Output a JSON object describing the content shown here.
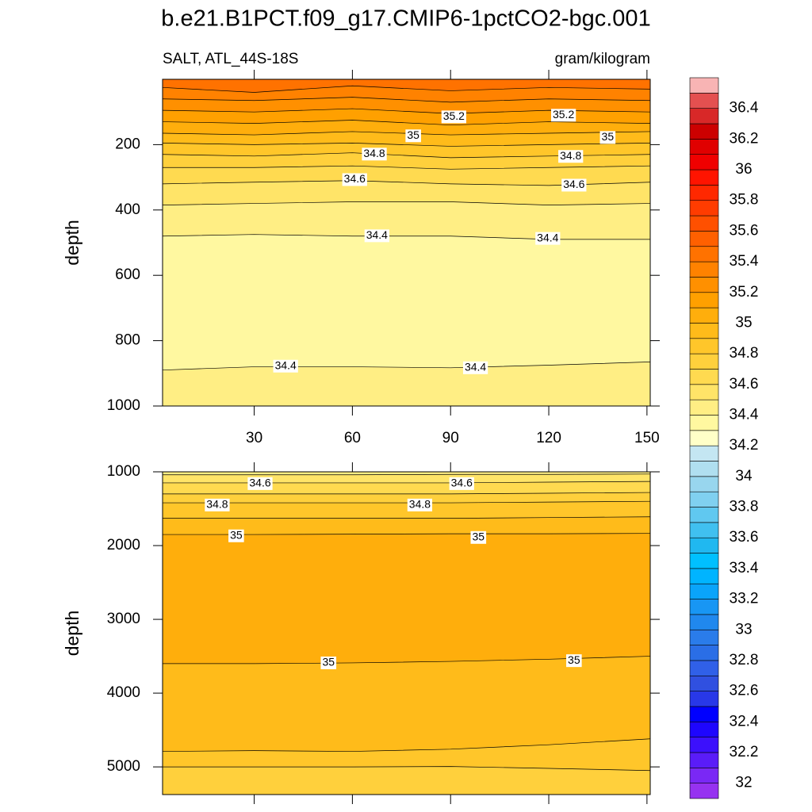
{
  "chart_data": {
    "type": "contour",
    "title": "b.e21.B1PCT.f09_g17.CMIP6-1pctCO2-bgc.001",
    "left_label": "SALT, ATL_44S-18S",
    "right_label": "gram/kilogram",
    "panels": [
      {
        "ylabel": "depth",
        "xlim": [
          2,
          151
        ],
        "xticks": [
          30,
          60,
          90,
          120,
          150
        ],
        "xtick_labels": true,
        "ylim": [
          0,
          1000
        ],
        "yticks": [
          200,
          400,
          600,
          800,
          1000
        ],
        "x": [
          2,
          30,
          60,
          90,
          120,
          151
        ],
        "contours": [
          {
            "depth": [
              25,
              40,
              20,
              35,
              25,
              30
            ]
          },
          {
            "depth": [
              60,
              65,
              55,
              70,
              60,
              65
            ]
          },
          {
            "depth": [
              95,
              100,
              90,
              105,
              95,
              100
            ]
          },
          {
            "depth": [
              130,
              135,
              125,
              140,
              130,
              135
            ]
          },
          {
            "depth": [
              165,
              170,
              160,
              170,
              165,
              160
            ]
          },
          {
            "depth": [
              195,
              200,
              195,
              205,
              200,
              195
            ]
          },
          {
            "depth": [
              230,
              235,
              225,
              240,
              235,
              230
            ]
          },
          {
            "depth": [
              270,
              270,
              265,
              275,
              270,
              265
            ]
          },
          {
            "depth": [
              320,
              315,
              310,
              320,
              325,
              315
            ]
          },
          {
            "depth": [
              385,
              380,
              375,
              375,
              385,
              380
            ]
          },
          {
            "depth": [
              480,
              475,
              480,
              480,
              490,
              490
            ]
          },
          {
            "depth": [
              890,
              880,
              880,
              883,
              875,
              865
            ]
          }
        ],
        "fill_levels": [
          35.4,
          35.3,
          35.2,
          35.1,
          35.0,
          34.9,
          34.8,
          34.7,
          34.6,
          34.5,
          34.4,
          34.3,
          34.4
        ],
        "contour_labels": [
          {
            "value": 35.2,
            "x": 91,
            "depth": 115
          },
          {
            "value": 35.2,
            "x": 124.5,
            "depth": 110
          },
          {
            "value": 35,
            "x": 78.6,
            "depth": 173
          },
          {
            "value": 35,
            "x": 138,
            "depth": 178
          },
          {
            "value": 34.8,
            "x": 66.7,
            "depth": 229
          },
          {
            "value": 34.8,
            "x": 126.7,
            "depth": 236
          },
          {
            "value": 34.6,
            "x": 60.7,
            "depth": 307
          },
          {
            "value": 34.6,
            "x": 127.7,
            "depth": 324
          },
          {
            "value": 34.4,
            "x": 67.5,
            "depth": 479
          },
          {
            "value": 34.4,
            "x": 119.7,
            "depth": 487
          },
          {
            "value": 34.4,
            "x": 39.6,
            "depth": 878
          },
          {
            "value": 34.4,
            "x": 97.6,
            "depth": 883
          }
        ]
      },
      {
        "ylabel": "depth",
        "xlim": [
          2,
          151
        ],
        "xticks": [
          30,
          60,
          90,
          120,
          150
        ],
        "xtick_labels": false,
        "ylim": [
          1000,
          5375
        ],
        "yticks": [
          1000,
          2000,
          3000,
          4000,
          5000
        ],
        "x": [
          2,
          30,
          60,
          90,
          120,
          151
        ],
        "contours": [
          {
            "depth": [
              1040,
              1040,
              1040,
              1035,
              1035,
              1030
            ]
          },
          {
            "depth": [
              1150,
              1150,
              1150,
              1150,
              1140,
              1130
            ]
          },
          {
            "depth": [
              1300,
              1300,
              1300,
              1300,
              1290,
              1280
            ]
          },
          {
            "depth": [
              1420,
              1420,
              1420,
              1420,
              1410,
              1400
            ]
          },
          {
            "depth": [
              1630,
              1630,
              1630,
              1630,
              1620,
              1610
            ]
          },
          {
            "depth": [
              1850,
              1850,
              1845,
              1840,
              1840,
              1835
            ]
          },
          {
            "depth": [
              3600,
              3600,
              3590,
              3570,
              3540,
              3500
            ]
          },
          {
            "depth": [
              4790,
              4780,
              4790,
              4760,
              4700,
              4620
            ]
          },
          {
            "depth": [
              5000,
              5000,
              5000,
              4995,
              5020,
              5050
            ]
          }
        ],
        "fill_levels": [
          34.4,
          34.5,
          34.6,
          34.7,
          34.8,
          34.9,
          35.0,
          34.9,
          34.8,
          34.7
        ],
        "contour_labels": [
          {
            "value": 34.6,
            "x": 31.8,
            "depth": 1160
          },
          {
            "value": 34.6,
            "x": 93.4,
            "depth": 1160
          },
          {
            "value": 34.8,
            "x": 18.7,
            "depth": 1450
          },
          {
            "value": 34.8,
            "x": 80.6,
            "depth": 1450
          },
          {
            "value": 35,
            "x": 24.5,
            "depth": 1868
          },
          {
            "value": 35,
            "x": 98.5,
            "depth": 1890
          },
          {
            "value": 35,
            "x": 52.7,
            "depth": 3590
          },
          {
            "value": 35,
            "x": 127.7,
            "depth": 3560
          }
        ]
      }
    ],
    "colorbar": {
      "clim": [
        31.9,
        36.6
      ],
      "ticks": [
        32,
        32.2,
        32.4,
        32.6,
        32.8,
        33,
        33.2,
        33.4,
        33.6,
        33.8,
        34,
        34.2,
        34.4,
        34.6,
        34.8,
        35,
        35.2,
        35.4,
        35.6,
        35.8,
        36,
        36.2,
        36.4
      ],
      "colors": [
        "#9632f0",
        "#7a28f5",
        "#5a1cf8",
        "#3c10fc",
        "#1e06fe",
        "#0000ff",
        "#2838e8",
        "#3050e0",
        "#3060e8",
        "#2a6ee6",
        "#2a7cea",
        "#2088ee",
        "#1896f4",
        "#0aa4fa",
        "#00b4ff",
        "#00c0ff",
        "#20b8f0",
        "#40c0f0",
        "#60c8f0",
        "#80d0f0",
        "#98d6ee",
        "#b0dff0",
        "#c4e6f2",
        "#ffffc8",
        "#fff8a0",
        "#ffee84",
        "#ffe468",
        "#ffda50",
        "#ffd03c",
        "#ffc62a",
        "#ffbb1a",
        "#ffae0c",
        "#ffa000",
        "#ff9000",
        "#ff8200",
        "#ff7200",
        "#ff6000",
        "#ff5000",
        "#ff3c00",
        "#ff2800",
        "#ff1400",
        "#f00000",
        "#e00000",
        "#cc0000",
        "#d82828",
        "#e45050",
        "#f8b4b4"
      ]
    }
  }
}
